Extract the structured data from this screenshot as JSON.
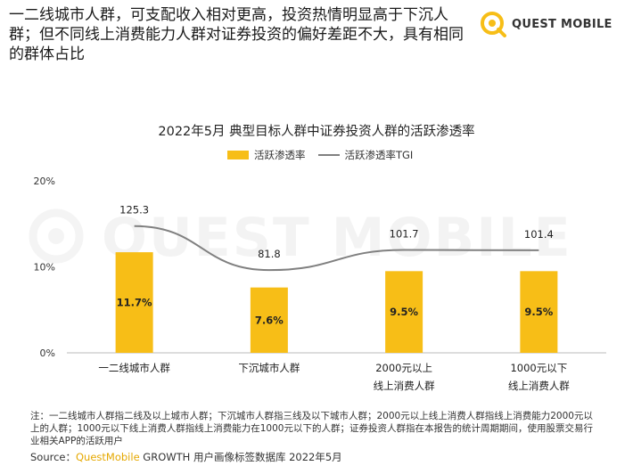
{
  "headline": "一二线城市人群，可支配收入相对更高，投资热情明显高于下沉人群；但不同线上消费能力人群对证券投资的偏好差距不大，具有相同的群体占比",
  "brand": {
    "name": "QUEST MOBILE",
    "watermark": "QUEST MOBILE"
  },
  "colors": {
    "bar": "#F7BE17",
    "line": "#808080",
    "brand_accent": "#E5A800"
  },
  "chart_data": {
    "type": "bar",
    "title": "2022年5月 典型目标人群中证券投资人群的活跃渗透率",
    "categories": [
      "一二线城市人群",
      "下沉城市人群",
      "2000元以上\n线上消费人群",
      "1000元以下\n线上消费人群"
    ],
    "series": [
      {
        "name": "活跃渗透率",
        "type": "bar",
        "axis": "left",
        "values": [
          11.7,
          7.6,
          9.5,
          9.5
        ],
        "labels": [
          "11.7%",
          "7.6%",
          "9.5%",
          "9.5%"
        ]
      },
      {
        "name": "活跃渗透率TGI",
        "type": "line",
        "axis": "right",
        "values": [
          125.3,
          81.8,
          101.7,
          101.4
        ],
        "labels": [
          "125.3",
          "81.8",
          "101.7",
          "101.4"
        ]
      }
    ],
    "y_ticks": [
      "0%",
      "10%",
      "20%"
    ],
    "ylim": [
      0,
      20
    ],
    "legend_position": "top-center"
  },
  "footer": {
    "note": "注：一二线城市人群指二线及以上城市人群；下沉城市人群指三线及以下城市人群；2000元以上线上消费人群指线上消费能力2000元以上的人群；1000元以下线上消费人群指线上消费能力在1000元以下的人群；证券投资人群指在本报告的统计周期期间，使用股票交易行业相关APP的活跃用户",
    "source_prefix": "Source：",
    "source_brand": "QuestMobile",
    "source_suffix": " GROWTH 用户画像标签数据库 2022年5月"
  }
}
